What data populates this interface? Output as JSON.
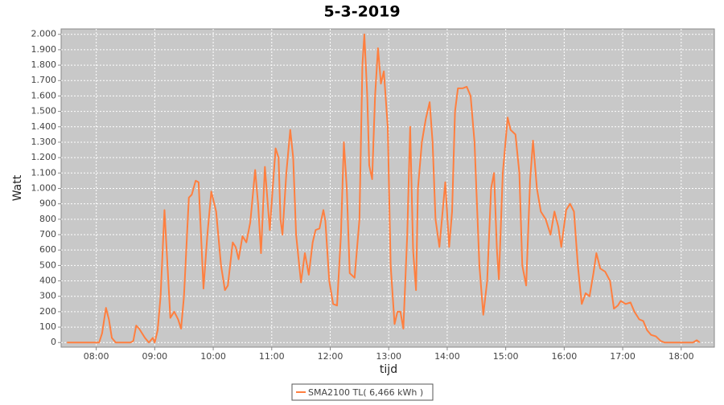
{
  "chart_data": {
    "type": "line",
    "title": "5-3-2019",
    "x_label": "tijd",
    "y_label": "Watt",
    "x": [
      "07:30",
      "07:55",
      "08:03",
      "08:06",
      "08:10",
      "08:13",
      "08:16",
      "08:20",
      "08:35",
      "08:38",
      "08:41",
      "08:44",
      "08:50",
      "08:54",
      "08:58",
      "09:00",
      "09:03",
      "09:06",
      "09:10",
      "09:16",
      "09:20",
      "09:24",
      "09:27",
      "09:30",
      "09:35",
      "09:38",
      "09:42",
      "09:45",
      "09:50",
      "09:54",
      "09:58",
      "10:03",
      "10:08",
      "10:12",
      "10:15",
      "10:20",
      "10:23",
      "10:26",
      "10:30",
      "10:34",
      "10:38",
      "10:43",
      "10:46",
      "10:49",
      "10:53",
      "10:58",
      "11:01",
      "11:04",
      "11:07",
      "11:09",
      "11:11",
      "11:15",
      "11:19",
      "11:22",
      "11:25",
      "11:30",
      "11:34",
      "11:38",
      "11:42",
      "11:45",
      "11:49",
      "11:53",
      "11:55",
      "11:59",
      "12:03",
      "12:07",
      "12:11",
      "12:14",
      "12:17",
      "12:20",
      "12:25",
      "12:30",
      "12:33",
      "12:35",
      "12:38",
      "12:40",
      "12:43",
      "12:46",
      "12:49",
      "12:52",
      "12:55",
      "12:59",
      "13:02",
      "13:06",
      "13:09",
      "13:12",
      "13:15",
      "13:19",
      "13:22",
      "13:25",
      "13:28",
      "13:30",
      "13:34",
      "13:38",
      "13:42",
      "13:45",
      "13:48",
      "13:52",
      "13:56",
      "13:58",
      "14:02",
      "14:05",
      "14:08",
      "14:11",
      "14:16",
      "14:20",
      "14:24",
      "14:28",
      "14:33",
      "14:37",
      "14:41",
      "14:45",
      "14:48",
      "14:51",
      "14:53",
      "14:57",
      "15:02",
      "15:05",
      "15:10",
      "15:14",
      "15:17",
      "15:21",
      "15:25",
      "15:28",
      "15:32",
      "15:36",
      "15:41",
      "15:46",
      "15:50",
      "15:54",
      "15:57",
      "16:02",
      "16:06",
      "16:10",
      "16:14",
      "16:18",
      "16:22",
      "16:26",
      "16:30",
      "16:33",
      "16:37",
      "16:42",
      "16:47",
      "16:51",
      "16:55",
      "16:58",
      "17:03",
      "17:08",
      "17:12",
      "17:17",
      "17:21",
      "17:25",
      "17:29",
      "17:34",
      "17:39",
      "17:43",
      "18:12",
      "18:16",
      "18:19"
    ],
    "series": [
      {
        "name": "SMA2100 TL( 6,466 kWh )",
        "color": "#ff7f3f",
        "values": [
          0,
          0,
          0,
          60,
          225,
          150,
          30,
          0,
          0,
          10,
          110,
          90,
          30,
          0,
          30,
          0,
          80,
          300,
          860,
          160,
          200,
          150,
          90,
          300,
          940,
          960,
          1050,
          1040,
          350,
          700,
          980,
          850,
          500,
          340,
          370,
          650,
          620,
          540,
          690,
          650,
          780,
          1120,
          900,
          580,
          1140,
          730,
          1000,
          1260,
          1200,
          800,
          700,
          1100,
          1380,
          1200,
          700,
          390,
          580,
          440,
          650,
          730,
          740,
          860,
          790,
          400,
          250,
          240,
          700,
          1300,
          1000,
          450,
          420,
          800,
          1800,
          2000,
          1600,
          1150,
          1060,
          1600,
          1910,
          1680,
          1760,
          1400,
          500,
          120,
          200,
          200,
          90,
          700,
          1400,
          600,
          340,
          1000,
          1300,
          1450,
          1560,
          1300,
          800,
          620,
          900,
          1040,
          620,
          850,
          1500,
          1650,
          1650,
          1660,
          1600,
          1300,
          500,
          180,
          400,
          1000,
          1100,
          600,
          410,
          1100,
          1460,
          1380,
          1350,
          1100,
          500,
          370,
          1050,
          1310,
          1000,
          850,
          800,
          700,
          850,
          750,
          620,
          860,
          900,
          850,
          500,
          250,
          320,
          300,
          450,
          580,
          480,
          460,
          400,
          220,
          240,
          270,
          250,
          260,
          200,
          150,
          140,
          80,
          50,
          40,
          10,
          0,
          0,
          15,
          0
        ]
      }
    ],
    "xlim": [
      "07:24",
      "18:34"
    ],
    "xticks": [
      "08:00",
      "09:00",
      "10:00",
      "11:00",
      "12:00",
      "13:00",
      "14:00",
      "15:00",
      "16:00",
      "17:00",
      "18:00"
    ],
    "ylim": [
      -30,
      2035
    ],
    "yticks": [
      0,
      100,
      200,
      300,
      400,
      500,
      600,
      700,
      800,
      900,
      {
        "value": 1000,
        "label": "1.000"
      },
      {
        "value": 1100,
        "label": "1.100"
      },
      {
        "value": 1200,
        "label": "1.200"
      },
      {
        "value": 1300,
        "label": "1.300"
      },
      {
        "value": 1400,
        "label": "1.400"
      },
      {
        "value": 1500,
        "label": "1.500"
      },
      {
        "value": 1600,
        "label": "1.600"
      },
      {
        "value": 1700,
        "label": "1.700"
      },
      {
        "value": 1800,
        "label": "1.800"
      },
      {
        "value": 1900,
        "label": "1.900"
      },
      {
        "value": 2000,
        "label": "2.000"
      }
    ],
    "grid": true
  }
}
